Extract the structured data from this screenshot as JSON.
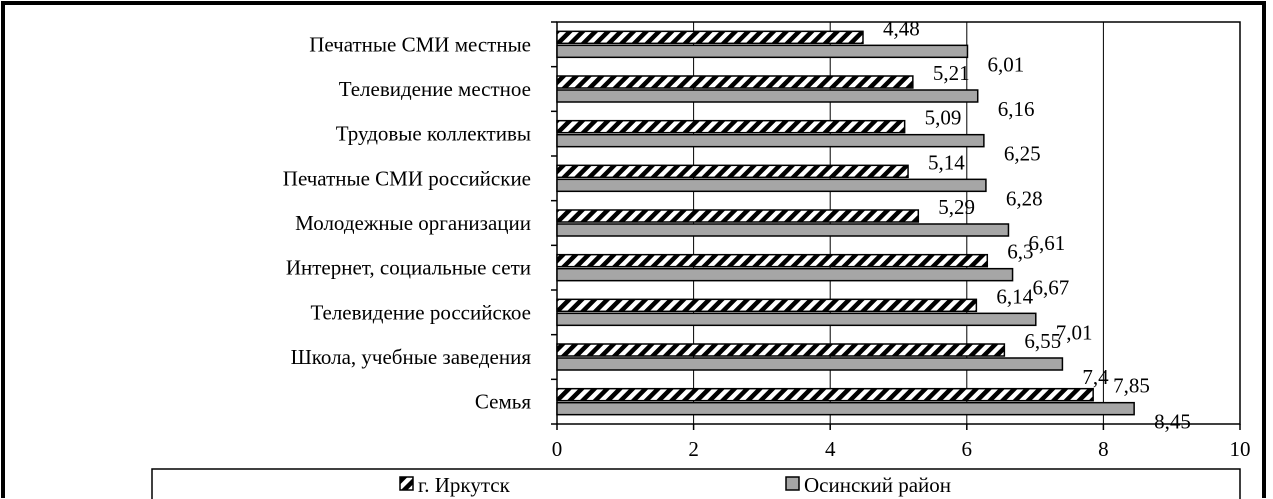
{
  "chart_data": {
    "type": "bar",
    "orientation": "horizontal",
    "categories": [
      "Печатные СМИ местные",
      "Телевидение местное",
      "Трудовые коллективы",
      "Печатные СМИ российские",
      "Молодежные организации",
      "Интернет, социальные сети",
      "Телевидение российское",
      "Школа, учебные заведения",
      "Семья"
    ],
    "series": [
      {
        "name": "г. Иркутск",
        "values": [
          4.48,
          5.21,
          5.09,
          5.14,
          5.29,
          6.3,
          6.14,
          6.55,
          7.85
        ],
        "labels": [
          "4,48",
          "5,21",
          "5,09",
          "5,14",
          "5,29",
          "6,3",
          "6,14",
          "6,55",
          "7,85"
        ],
        "pattern": "diagonal-hatch",
        "color": "#000000"
      },
      {
        "name": "Осинский район",
        "values": [
          6.01,
          6.16,
          6.25,
          6.28,
          6.61,
          6.67,
          7.01,
          7.4,
          8.45
        ],
        "labels": [
          "6,01",
          "6,16",
          "6,25",
          "6,28",
          "6,61",
          "6,67",
          "7,01",
          "7,4",
          "8,45"
        ],
        "pattern": "solid",
        "color": "#a6a6a6"
      }
    ],
    "xlim": [
      0,
      10
    ],
    "xticks": [
      0,
      2,
      4,
      6,
      8,
      10
    ],
    "xtick_labels": [
      "0",
      "2",
      "4",
      "6",
      "8",
      "10"
    ],
    "grid": "vertical-major",
    "legend": "bottom"
  }
}
